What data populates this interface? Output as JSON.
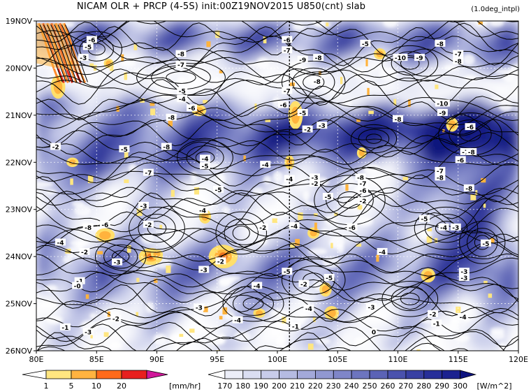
{
  "header": {
    "title": "NICAM  OLR + PRCP (4-5S) init:00Z19NOV2015 U850(cnt) slab",
    "subtitle": "(1.0deg_intpl)"
  },
  "chart_data": {
    "type": "heatmap",
    "title": "NICAM  OLR + PRCP (4-5S) init:00Z19NOV2015 U850(cnt) slab",
    "subtitle": "(1.0deg_intpl)",
    "x_axis": {
      "range": [
        80,
        120
      ],
      "tick_values": [
        80,
        85,
        90,
        95,
        100,
        105,
        110,
        115,
        120
      ],
      "tick_labels": [
        "80E",
        "85E",
        "90E",
        "95E",
        "100E",
        "105E",
        "110E",
        "115E",
        "120E"
      ]
    },
    "y_axis": {
      "range_days": [
        "19NOV",
        "26NOV"
      ],
      "tick_labels": [
        "19NOV",
        "20NOV",
        "21NOV",
        "22NOV",
        "23NOV",
        "24NOV",
        "25NOV",
        "26NOV"
      ],
      "reversed": true
    },
    "grid": true,
    "reference_line": {
      "x": 101,
      "style": "dashed"
    },
    "precip_colorbar": {
      "unit": "[mm/hr]",
      "levels": [
        1,
        5,
        10,
        20
      ],
      "level_labels": [
        "1",
        "5",
        "10",
        "20"
      ],
      "colors": [
        "#ffffff",
        "#ffe680",
        "#ffb340",
        "#ff6a1a",
        "#e8201e",
        "#d0189a"
      ]
    },
    "olr_colorbar": {
      "unit": "[W/m^2]",
      "levels": [
        170,
        180,
        190,
        200,
        210,
        220,
        230,
        240,
        250,
        260,
        270,
        280,
        290,
        300
      ],
      "level_labels": [
        "170",
        "180",
        "190",
        "200",
        "210",
        "220",
        "230",
        "240",
        "250",
        "260",
        "270",
        "280",
        "290",
        "300"
      ],
      "colors": [
        "#ffffff",
        "#eceef8",
        "#dadef2",
        "#c8ccea",
        "#b5bbe2",
        "#a3a9da",
        "#9198d1",
        "#7f86c8",
        "#6d75bf",
        "#5b63b6",
        "#4a52ad",
        "#3840a3",
        "#272f99",
        "#1b2290",
        "#0d137f"
      ]
    },
    "contour_labels": [
      {
        "lon": 84.6,
        "day": 0.4,
        "text": "-6"
      },
      {
        "lon": 84.3,
        "day": 0.55,
        "text": "-5"
      },
      {
        "lon": 83.9,
        "day": 0.78,
        "text": "-3"
      },
      {
        "lon": 92.0,
        "day": 0.7,
        "text": "-8"
      },
      {
        "lon": 92.0,
        "day": 0.93,
        "text": "-7"
      },
      {
        "lon": 100.8,
        "day": 0.4,
        "text": "-6"
      },
      {
        "lon": 100.8,
        "day": 0.62,
        "text": "-7"
      },
      {
        "lon": 102.1,
        "day": 0.82,
        "text": "-9"
      },
      {
        "lon": 103.4,
        "day": 0.78,
        "text": "-8"
      },
      {
        "lon": 107.3,
        "day": 0.48,
        "text": "-5"
      },
      {
        "lon": 110.2,
        "day": 0.78,
        "text": "-10"
      },
      {
        "lon": 111.8,
        "day": 0.78,
        "text": "-9"
      },
      {
        "lon": 113.5,
        "day": 0.48,
        "text": "-8"
      },
      {
        "lon": 115.0,
        "day": 0.7,
        "text": "-7"
      },
      {
        "lon": 115.0,
        "day": 0.85,
        "text": "-8"
      },
      {
        "lon": 100.8,
        "day": 1.48,
        "text": "-7"
      },
      {
        "lon": 103.3,
        "day": 1.28,
        "text": "-8"
      },
      {
        "lon": 92.1,
        "day": 1.48,
        "text": "-5"
      },
      {
        "lon": 92.1,
        "day": 1.65,
        "text": "-4"
      },
      {
        "lon": 100.5,
        "day": 1.78,
        "text": "-6"
      },
      {
        "lon": 92.9,
        "day": 1.85,
        "text": "-6"
      },
      {
        "lon": 91.2,
        "day": 2.05,
        "text": "-8"
      },
      {
        "lon": 102.1,
        "day": 1.95,
        "text": "-5"
      },
      {
        "lon": 113.7,
        "day": 1.75,
        "text": "-10"
      },
      {
        "lon": 113.7,
        "day": 1.95,
        "text": "-9"
      },
      {
        "lon": 110.0,
        "day": 2.08,
        "text": "-8"
      },
      {
        "lon": 102.5,
        "day": 2.3,
        "text": "-2"
      },
      {
        "lon": 103.7,
        "day": 2.22,
        "text": "-3"
      },
      {
        "lon": 116.0,
        "day": 2.25,
        "text": "-6"
      },
      {
        "lon": 81.6,
        "day": 2.67,
        "text": "-2"
      },
      {
        "lon": 87.3,
        "day": 2.72,
        "text": "-5"
      },
      {
        "lon": 90.8,
        "day": 2.67,
        "text": "-8"
      },
      {
        "lon": 94.0,
        "day": 2.92,
        "text": "-4"
      },
      {
        "lon": 94.0,
        "day": 3.08,
        "text": "-5"
      },
      {
        "lon": 89.3,
        "day": 3.22,
        "text": "-7"
      },
      {
        "lon": 99.0,
        "day": 3.05,
        "text": "-4"
      },
      {
        "lon": 115.6,
        "day": 2.78,
        "text": "-7"
      },
      {
        "lon": 116.1,
        "day": 2.78,
        "text": "-8"
      },
      {
        "lon": 115.2,
        "day": 2.95,
        "text": "-6"
      },
      {
        "lon": 113.5,
        "day": 3.18,
        "text": "-7"
      },
      {
        "lon": 113.5,
        "day": 3.32,
        "text": "-8"
      },
      {
        "lon": 106.9,
        "day": 3.32,
        "text": "-8"
      },
      {
        "lon": 107.1,
        "day": 3.45,
        "text": "-7"
      },
      {
        "lon": 107.1,
        "day": 3.6,
        "text": "-6"
      },
      {
        "lon": 103.1,
        "day": 3.32,
        "text": "-3"
      },
      {
        "lon": 103.1,
        "day": 3.45,
        "text": "-2"
      },
      {
        "lon": 101.0,
        "day": 3.35,
        "text": "-4"
      },
      {
        "lon": 95.1,
        "day": 3.58,
        "text": "-5"
      },
      {
        "lon": 107.1,
        "day": 3.82,
        "text": "-2"
      },
      {
        "lon": 104.2,
        "day": 3.73,
        "text": "-5"
      },
      {
        "lon": 115.9,
        "day": 3.55,
        "text": "-8"
      },
      {
        "lon": 88.9,
        "day": 3.92,
        "text": "-3"
      },
      {
        "lon": 93.8,
        "day": 4.02,
        "text": "-4"
      },
      {
        "lon": 112.2,
        "day": 4.2,
        "text": "-5"
      },
      {
        "lon": 113.8,
        "day": 4.38,
        "text": "-4"
      },
      {
        "lon": 114.8,
        "day": 4.38,
        "text": "-3"
      },
      {
        "lon": 85.7,
        "day": 4.32,
        "text": "-6"
      },
      {
        "lon": 84.3,
        "day": 4.38,
        "text": "-8"
      },
      {
        "lon": 89.3,
        "day": 4.32,
        "text": "-2"
      },
      {
        "lon": 98.8,
        "day": 4.38,
        "text": "-2"
      },
      {
        "lon": 101.4,
        "day": 4.35,
        "text": "-4"
      },
      {
        "lon": 106.2,
        "day": 4.38,
        "text": "-6"
      },
      {
        "lon": 82.0,
        "day": 4.7,
        "text": "-4"
      },
      {
        "lon": 84.0,
        "day": 4.9,
        "text": "-2"
      },
      {
        "lon": 108.7,
        "day": 4.9,
        "text": "-4"
      },
      {
        "lon": 117.3,
        "day": 4.72,
        "text": "-5"
      },
      {
        "lon": 86.7,
        "day": 5.12,
        "text": "-3"
      },
      {
        "lon": 95.3,
        "day": 5.1,
        "text": "-2"
      },
      {
        "lon": 93.9,
        "day": 5.28,
        "text": "-3"
      },
      {
        "lon": 100.8,
        "day": 5.32,
        "text": "-5"
      },
      {
        "lon": 104.3,
        "day": 5.45,
        "text": "-5"
      },
      {
        "lon": 115.5,
        "day": 5.32,
        "text": "-3"
      },
      {
        "lon": 115.5,
        "day": 5.45,
        "text": "-3"
      },
      {
        "lon": 83.6,
        "day": 5.52,
        "text": "-1"
      },
      {
        "lon": 83.4,
        "day": 5.62,
        "text": "-0"
      },
      {
        "lon": 98.3,
        "day": 5.62,
        "text": "-4"
      },
      {
        "lon": 102.2,
        "day": 5.58,
        "text": "-2"
      },
      {
        "lon": 93.5,
        "day": 6.08,
        "text": "-3"
      },
      {
        "lon": 102.6,
        "day": 6.1,
        "text": "-4"
      },
      {
        "lon": 107.8,
        "day": 6.07,
        "text": "-3"
      },
      {
        "lon": 112.9,
        "day": 6.22,
        "text": "-2"
      },
      {
        "lon": 115.4,
        "day": 6.28,
        "text": "-4"
      },
      {
        "lon": 86.6,
        "day": 6.32,
        "text": "-2"
      },
      {
        "lon": 96.7,
        "day": 6.35,
        "text": "-4"
      },
      {
        "lon": 82.4,
        "day": 6.5,
        "text": "-1"
      },
      {
        "lon": 84.3,
        "day": 6.6,
        "text": "-3"
      },
      {
        "lon": 101.5,
        "day": 6.48,
        "text": "-1"
      },
      {
        "lon": 108.0,
        "day": 6.6,
        "text": "0"
      },
      {
        "lon": 113.2,
        "day": 6.42,
        "text": "-1"
      }
    ]
  }
}
